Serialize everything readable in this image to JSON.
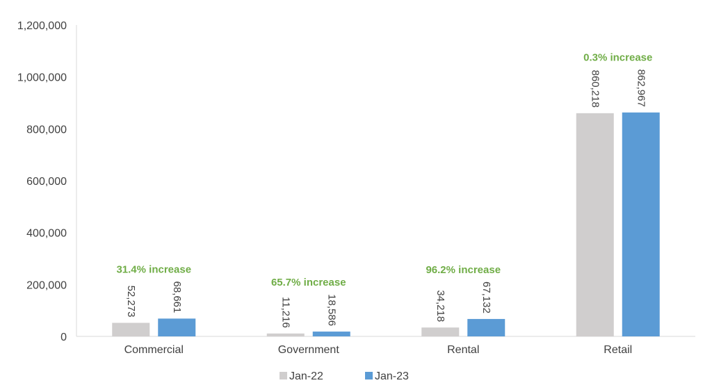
{
  "chart_data": {
    "type": "bar",
    "categories": [
      "Commercial",
      "Government",
      "Rental",
      "Retail"
    ],
    "series": [
      {
        "name": "Jan-22",
        "values": [
          52273,
          11216,
          34218,
          860218
        ],
        "labels": [
          "52,273",
          "11,216",
          "34,218",
          "860,218"
        ],
        "color": "#d0cece"
      },
      {
        "name": "Jan-23",
        "values": [
          68661,
          18586,
          67132,
          862967
        ],
        "labels": [
          "68,661",
          "18,586",
          "67,132",
          "862,967"
        ],
        "color": "#5b9bd5"
      }
    ],
    "annotations": [
      "31.4% increase",
      "65.7% increase",
      "96.2% increase",
      "0.3% increase"
    ],
    "annotation_color": "#70ad47",
    "ylim": [
      0,
      1200000
    ],
    "yticks": [
      0,
      200000,
      400000,
      600000,
      800000,
      1000000,
      1200000
    ],
    "ytick_labels": [
      "0",
      "200,000",
      "400,000",
      "600,000",
      "800,000",
      "1,000,000",
      "1,200,000"
    ],
    "title": "",
    "xlabel": "",
    "ylabel": "",
    "legend_position": "bottom",
    "grid": false
  }
}
